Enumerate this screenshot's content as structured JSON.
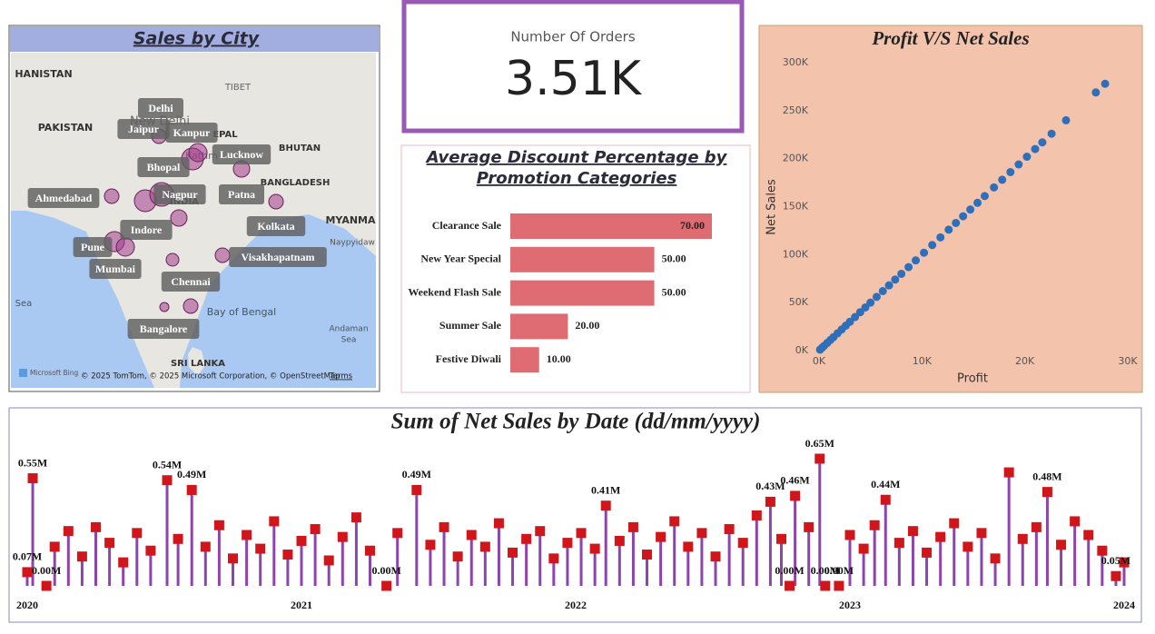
{
  "map": {
    "title": "Sales by City",
    "places": [
      "HANISTAN",
      "PAKISTAN",
      "TIBET",
      "EPAL",
      "BHUTAN",
      "BANGLADESH",
      "MYANMA",
      "Naypyidaw",
      "INDIA",
      "New Delhi",
      "Kathm",
      "Sea",
      "Bay of Bengal",
      "Andaman",
      "Sea",
      "SRI LANKA"
    ],
    "cities": [
      "Delhi",
      "Jaipur",
      "Kanpur",
      "Lucknow",
      "Bhopal",
      "Ahmedabad",
      "Nagpur",
      "Patna",
      "Indore",
      "Kolkata",
      "Pune",
      "Mumbai",
      "Visakhapatnam",
      "Chennai",
      "Bangalore"
    ],
    "attribution": [
      "Microsoft Bing",
      "© 2025 TomTom, © 2025 Microsoft Corporation, © OpenStreetMap",
      "Terms"
    ]
  },
  "kpi": {
    "label": "Number Of Orders",
    "value": "3.51K"
  },
  "chart_data": [
    {
      "type": "bar",
      "orientation": "horizontal",
      "title": [
        "Average Discount Percentage by",
        "Promotion Categories"
      ],
      "categories": [
        "Clearance Sale",
        "New Year Special",
        "Weekend Flash Sale",
        "Summer Sale",
        "Festive Diwali"
      ],
      "values": [
        70,
        50,
        50,
        20,
        10
      ],
      "value_labels": [
        "70.00",
        "50.00",
        "50.00",
        "20.00",
        "10.00"
      ],
      "color": "#df6b73"
    },
    {
      "type": "scatter",
      "title": "Profit V/S Net Sales",
      "x_label": "Profit",
      "y_label": "Net Sales",
      "color": "#2f6fba",
      "grid": false,
      "x": [
        100,
        300,
        500,
        800,
        1100,
        1400,
        1800,
        2200,
        2600,
        3000,
        3500,
        4000,
        4500,
        5000,
        5600,
        6200,
        6800,
        7400,
        8000,
        8700,
        9400,
        10200,
        11000,
        11800,
        12600,
        13300,
        14000,
        14700,
        15400,
        16100,
        17000,
        17800,
        18600,
        19400,
        20200,
        21000,
        21700,
        22600,
        24000,
        26900,
        27800
      ],
      "values": [
        1000,
        3000,
        5000,
        8000,
        11000,
        14000,
        18000,
        22000,
        26000,
        30000,
        35000,
        40000,
        45000,
        50000,
        56000,
        62000,
        68000,
        74000,
        80000,
        87000,
        94000,
        102000,
        110000,
        118000,
        126000,
        133000,
        140000,
        147000,
        154000,
        161000,
        170000,
        178000,
        186000,
        194000,
        202000,
        210000,
        217000,
        226000,
        240000,
        269000,
        278000
      ],
      "xlim": [
        0,
        30000
      ],
      "xticks": [
        {
          "value": 0,
          "label": "0K"
        },
        {
          "value": 10000,
          "label": "10K"
        },
        {
          "value": 20000,
          "label": "20K"
        },
        {
          "value": 30000,
          "label": "30K"
        }
      ],
      "ylim": [
        0,
        300000
      ],
      "yticks": [
        {
          "value": 0,
          "label": "0K"
        },
        {
          "value": 50000,
          "label": "50K"
        },
        {
          "value": 100000,
          "label": "100K"
        },
        {
          "value": 150000,
          "label": "150K"
        },
        {
          "value": 200000,
          "label": "200K"
        },
        {
          "value": 250000,
          "label": "250K"
        },
        {
          "value": 300000,
          "label": "300K"
        }
      ]
    },
    {
      "type": "lollipop",
      "title": "Sum of Net Sales by Date (dd/mm/yyyy)",
      "color": "#d0161b",
      "stem_color": "#8e44ad",
      "xlim": [
        2020,
        2024
      ],
      "xticks": [
        2020,
        2021,
        2022,
        2023,
        2024
      ],
      "x": [
        2020.0,
        2020.02,
        2020.07,
        2020.1,
        2020.15,
        2020.2,
        2020.25,
        2020.3,
        2020.35,
        2020.4,
        2020.45,
        2020.51,
        2020.55,
        2020.6,
        2020.65,
        2020.7,
        2020.75,
        2020.8,
        2020.85,
        2020.9,
        2020.95,
        2021.0,
        2021.05,
        2021.1,
        2021.15,
        2021.2,
        2021.25,
        2021.31,
        2021.35,
        2021.42,
        2021.47,
        2021.52,
        2021.57,
        2021.62,
        2021.67,
        2021.72,
        2021.77,
        2021.82,
        2021.87,
        2021.92,
        2021.97,
        2022.02,
        2022.07,
        2022.11,
        2022.16,
        2022.21,
        2022.26,
        2022.31,
        2022.36,
        2022.41,
        2022.46,
        2022.51,
        2022.56,
        2022.61,
        2022.66,
        2022.71,
        2022.75,
        2022.78,
        2022.8,
        2022.85,
        2022.89,
        2022.91,
        2022.96,
        2023.0,
        2023.05,
        2023.09,
        2023.13,
        2023.18,
        2023.23,
        2023.28,
        2023.33,
        2023.38,
        2023.43,
        2023.48,
        2023.53,
        2023.58,
        2023.63,
        2023.68,
        2023.72,
        2023.77,
        2023.82,
        2023.87,
        2023.92,
        2023.97,
        2024.0
      ],
      "values": [
        0.07,
        0.55,
        0,
        0.2,
        0.28,
        0.15,
        0.3,
        0.22,
        0.12,
        0.27,
        0.18,
        0.54,
        0.24,
        0.49,
        0.2,
        0.31,
        0.14,
        0.26,
        0.19,
        0.33,
        0.16,
        0.23,
        0.29,
        0.13,
        0.25,
        0.35,
        0.18,
        0,
        0.27,
        0.49,
        0.21,
        0.3,
        0.15,
        0.26,
        0.2,
        0.32,
        0.17,
        0.24,
        0.28,
        0.14,
        0.22,
        0.27,
        0.19,
        0.41,
        0.23,
        0.3,
        0.16,
        0.25,
        0.33,
        0.2,
        0.27,
        0.15,
        0.29,
        0.22,
        0.36,
        0.43,
        0.24,
        0,
        0.46,
        0.3,
        0.65,
        0,
        0,
        0.26,
        0.19,
        0.31,
        0.44,
        0.22,
        0.28,
        0.17,
        0.25,
        0.32,
        0.2,
        0.27,
        0.14,
        0.58,
        0.24,
        0.3,
        0.48,
        0.21,
        0.33,
        0.26,
        0.18,
        0.05,
        0.12
      ],
      "value_labels": [
        "0.07M",
        "0.55M",
        "0.00M",
        null,
        null,
        null,
        null,
        null,
        null,
        null,
        null,
        "0.54M",
        null,
        "0.49M",
        null,
        null,
        null,
        null,
        null,
        null,
        null,
        null,
        null,
        null,
        null,
        null,
        null,
        "0.00M",
        null,
        "0.49M",
        null,
        null,
        null,
        null,
        null,
        null,
        null,
        null,
        null,
        null,
        null,
        null,
        null,
        "0.41M",
        null,
        null,
        null,
        null,
        null,
        null,
        null,
        null,
        null,
        null,
        null,
        "0.43M",
        null,
        "0.00M",
        "0.46M",
        null,
        "0.65M",
        "0.00M",
        "0.00M",
        null,
        null,
        null,
        "0.44M",
        null,
        null,
        null,
        null,
        null,
        null,
        null,
        null,
        null,
        null,
        null,
        "0.48M",
        null,
        null,
        null,
        null,
        "0.05M",
        null
      ]
    }
  ]
}
